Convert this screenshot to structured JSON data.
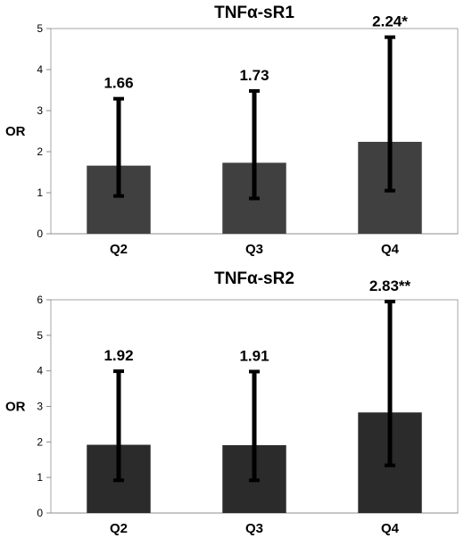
{
  "chart_data": [
    {
      "type": "bar",
      "title": "TNFα-sR1",
      "ylabel": "OR",
      "xlabel": "",
      "categories": [
        "Q2",
        "Q3",
        "Q4"
      ],
      "values": [
        1.66,
        1.73,
        2.24
      ],
      "error_low": [
        0.92,
        0.86,
        1.05
      ],
      "error_high": [
        3.29,
        3.48,
        4.79
      ],
      "data_labels": [
        "1.66",
        "1.73",
        "2.24*"
      ],
      "ylim": [
        0,
        5
      ],
      "yticks": [
        0,
        1,
        2,
        3,
        4,
        5
      ],
      "grid": false,
      "bar_color": "#404040"
    },
    {
      "type": "bar",
      "title": "TNFα-sR2",
      "ylabel": "OR",
      "xlabel": "",
      "categories": [
        "Q2",
        "Q3",
        "Q4"
      ],
      "values": [
        1.92,
        1.91,
        2.83
      ],
      "error_low": [
        0.92,
        0.92,
        1.34
      ],
      "error_high": [
        3.99,
        3.98,
        5.95
      ],
      "data_labels": [
        "1.92",
        "1.91",
        "2.83**"
      ],
      "ylim": [
        0,
        6
      ],
      "yticks": [
        0,
        1,
        2,
        3,
        4,
        5,
        6
      ],
      "grid": false,
      "bar_color": "#2b2b2b"
    }
  ]
}
